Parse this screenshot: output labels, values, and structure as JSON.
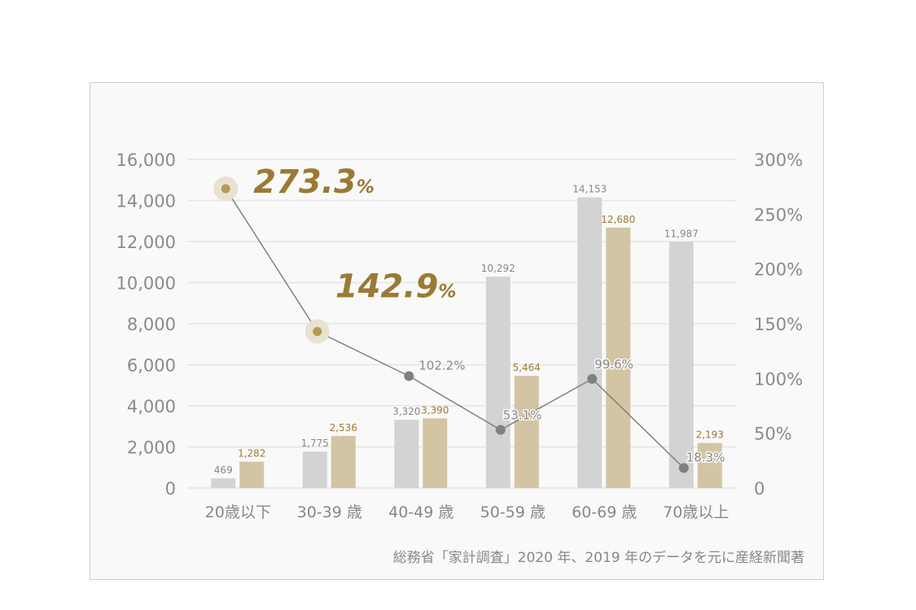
{
  "chart_data": {
    "type": "bar+line",
    "categories": [
      "20歳以下",
      "30-39 歳",
      "40-49 歳",
      "50-59 歳",
      "60-69 歳",
      "70歳以上"
    ],
    "series": [
      {
        "type": "bar",
        "values": [
          469,
          1775,
          3320,
          10292,
          14153,
          11987
        ],
        "labels": [
          "469",
          "1,775",
          "3,320",
          "10,292",
          "14,153",
          "11,987"
        ],
        "color": "#d3d3d3",
        "label_color": "#888888"
      },
      {
        "type": "bar",
        "values": [
          1282,
          2536,
          3390,
          5464,
          12680,
          2193
        ],
        "labels": [
          "1,282",
          "2,536",
          "3,390",
          "5,464",
          "12,680",
          "2,193"
        ],
        "color": "#d3c5a3",
        "label_color": "#9a7a35"
      },
      {
        "type": "line",
        "axis": "right",
        "values": [
          273.3,
          142.9,
          102.2,
          53.1,
          99.6,
          18.3
        ],
        "labels": [
          "273.3",
          "142.9",
          "102.2%",
          "53.1%",
          "99.6%",
          "18.3%"
        ],
        "highlighted": [
          true,
          true,
          false,
          false,
          false,
          false
        ],
        "color": "#808080",
        "highlight_color": "#b39a55"
      }
    ],
    "highlight_percent_sign": "%",
    "ylim": [
      0,
      16000
    ],
    "yticks": [
      "0",
      "2,000",
      "4,000",
      "6,000",
      "8,000",
      "10,000",
      "12,000",
      "14,000",
      "16,000"
    ],
    "y2lim": [
      0,
      300
    ],
    "y2ticks": [
      "0",
      "50%",
      "100%",
      "150%",
      "200%",
      "250%",
      "300%"
    ],
    "grid": true,
    "source": "総務省「家計調査」2020 年、2019 年のデータを元に産経新聞著"
  }
}
